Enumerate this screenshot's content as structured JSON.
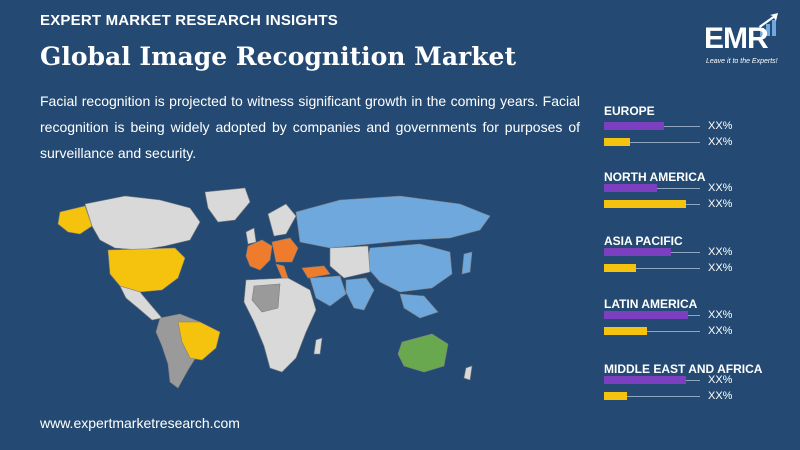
{
  "header": {
    "kicker": "EXPERT MARKET RESEARCH INSIGHTS",
    "title": "Global Image Recognition Market",
    "description": "Facial recognition is projected to witness significant growth in the coming years. Facial recognition is being widely adopted by companies and governments for purposes of surveillance and security."
  },
  "logo": {
    "text": "EMR",
    "tagline": "Leave it to the Experts!"
  },
  "footer": {
    "url": "www.expertmarketresearch.com"
  },
  "colors": {
    "background": "#244a73",
    "purple_bar": "#7b3fbf",
    "yellow_bar": "#f5c20d",
    "map_highlight_yellow": "#f5c20d",
    "map_highlight_orange": "#ef7c2c",
    "map_highlight_blue": "#6fa8dc",
    "map_highlight_green": "#6aa84f",
    "map_other_light": "#d9d9d9",
    "map_other_dark": "#9a9a9a"
  },
  "regions": [
    {
      "name": "EUROPE",
      "bars": [
        {
          "value_label": "XX%",
          "level": 0.62
        },
        {
          "value_label": "XX%",
          "level": 0.27
        }
      ]
    },
    {
      "name": "NORTH AMERICA",
      "bars": [
        {
          "value_label": "XX%",
          "level": 0.55
        },
        {
          "value_label": "XX%",
          "level": 0.85
        }
      ]
    },
    {
      "name": "ASIA PACIFIC",
      "bars": [
        {
          "value_label": "XX%",
          "level": 0.7
        },
        {
          "value_label": "XX%",
          "level": 0.33
        }
      ]
    },
    {
      "name": "LATIN AMERICA",
      "bars": [
        {
          "value_label": "XX%",
          "level": 0.88
        },
        {
          "value_label": "XX%",
          "level": 0.45
        }
      ]
    },
    {
      "name": "MIDDLE EAST AND AFRICA",
      "bars": [
        {
          "value_label": "XX%",
          "level": 0.85
        },
        {
          "value_label": "XX%",
          "level": 0.24
        }
      ]
    }
  ]
}
